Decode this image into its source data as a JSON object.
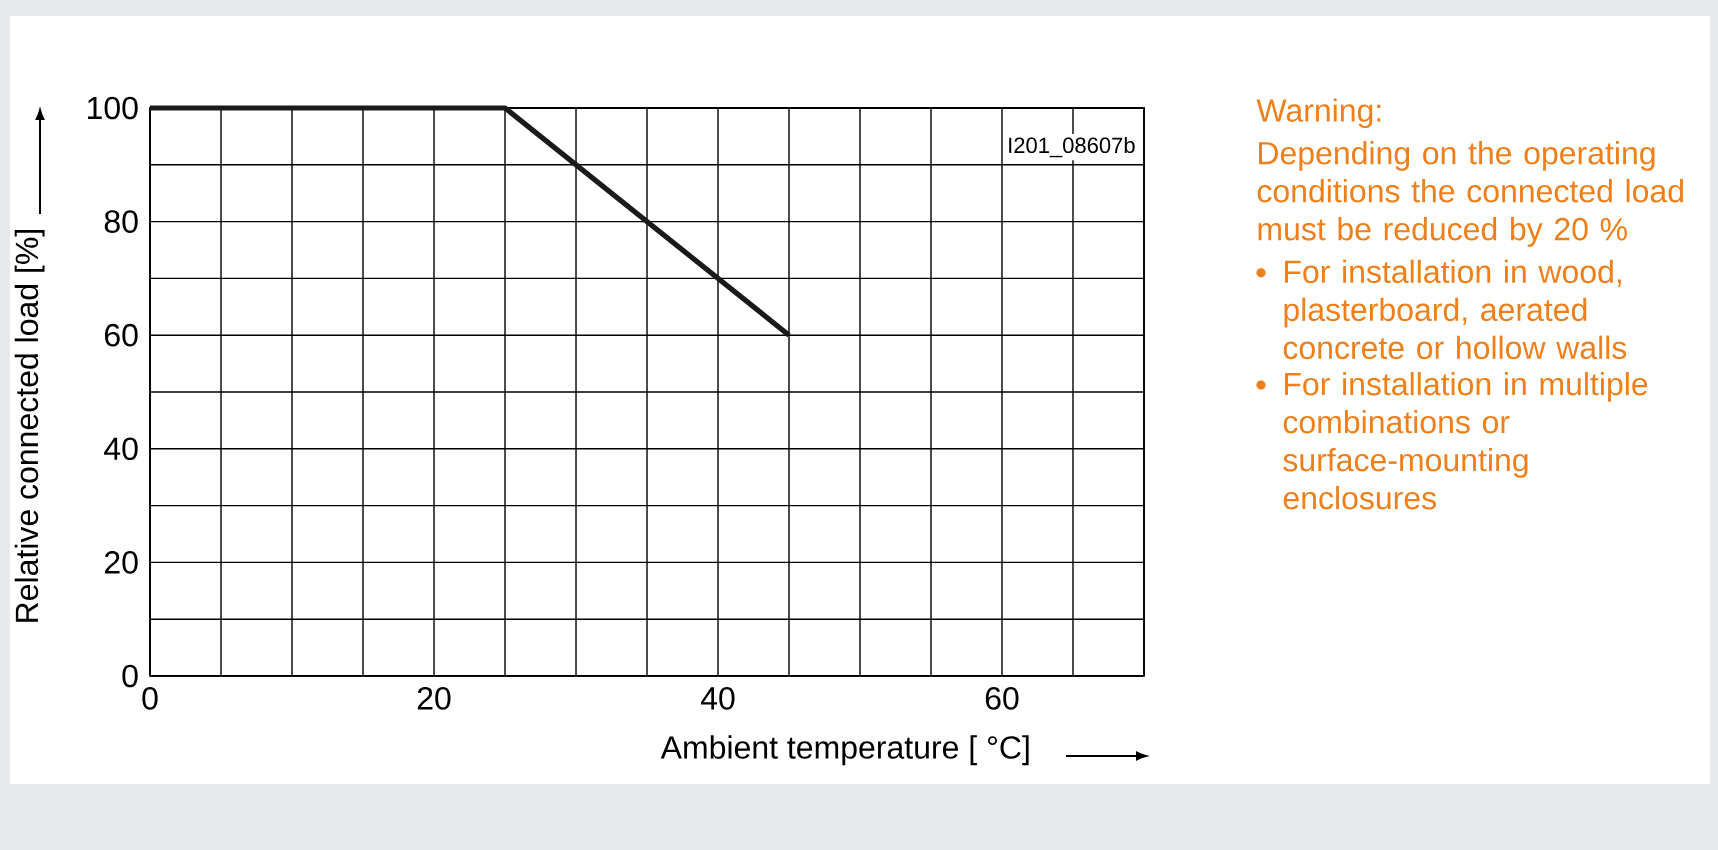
{
  "chart_data": {
    "type": "line",
    "x": [
      0,
      25,
      45
    ],
    "series": [
      {
        "color": "#1a1a1a",
        "values": [
          100,
          100,
          60
        ]
      }
    ],
    "xlabel": "Ambient temperature [ °C]",
    "ylabel": "Relative connected load [%]",
    "xlim": [
      0,
      70
    ],
    "ylim": [
      0,
      100
    ],
    "xticks": [
      0,
      {
        "value": 5,
        "label": null
      },
      {
        "value": 10,
        "label": null
      },
      {
        "value": 15,
        "label": null
      },
      20,
      {
        "value": 25,
        "label": null
      },
      {
        "value": 30,
        "label": null
      },
      {
        "value": 35,
        "label": null
      },
      40,
      {
        "value": 45,
        "label": null
      },
      {
        "value": 50,
        "label": null
      },
      {
        "value": 55,
        "label": null
      },
      60,
      {
        "value": 65,
        "label": null
      },
      {
        "value": 70,
        "label": null
      }
    ],
    "yticks": [
      0,
      {
        "value": 10,
        "label": null
      },
      20,
      {
        "value": 30,
        "label": null
      },
      40,
      {
        "value": 50,
        "label": null
      },
      60,
      {
        "value": 70,
        "label": null
      },
      80,
      {
        "value": 90,
        "label": null
      },
      100
    ],
    "grid": true,
    "marker": "none",
    "line_style": "solid",
    "annotations": [
      "I201_08607b",
      "Warning:",
      "Depending on the operating conditions the connected load must be reduced by 20 %",
      "For installation in wood, plasterboard, aerated concrete or hollow walls",
      "For installation in multiple combinations or surface-mounting enclosures"
    ]
  }
}
